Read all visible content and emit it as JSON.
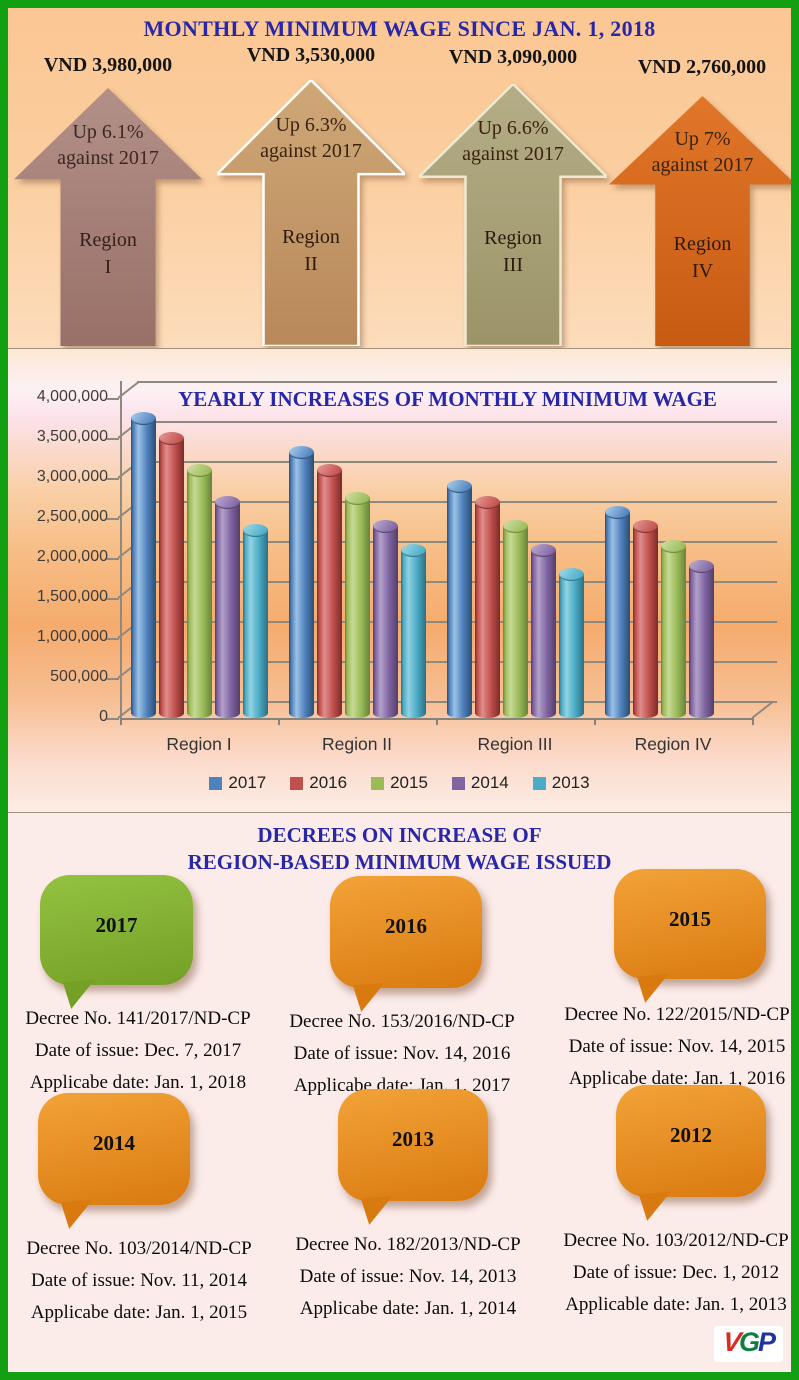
{
  "page": {
    "colors": {
      "frame_green": "#12A012",
      "heading_blue": "#2727A8",
      "top_bg": "#FBCA97",
      "bottom_bg": "#FBEBE9"
    }
  },
  "header": {
    "title": "MONTHLY MINIMUM WAGE SINCE JAN. 1, 2018"
  },
  "regions_2018": [
    {
      "region_name": "Region I",
      "amount": "VND 3,980,000",
      "increase": "Up 6.1%\nagainst 2017",
      "region": "Region\nI",
      "fill_top": "#B29088",
      "fill_bottom": "#997068",
      "outline": "none"
    },
    {
      "region_name": "Region II",
      "amount": "VND 3,530,000",
      "increase": "Up 6.3%\nagainst 2017",
      "region": "Region\nII",
      "fill_top": "#CFA878",
      "fill_bottom": "#B8885A",
      "outline": "#FFFFFF"
    },
    {
      "region_name": "Region III",
      "amount": "VND 3,090,000",
      "increase": "Up 6.6%\nagainst 2017",
      "region": "Region\nIII",
      "fill_top": "#B5AD86",
      "fill_bottom": "#9C9468",
      "outline": "#EFE9D2"
    },
    {
      "region_name": "Region IV",
      "amount": "VND 2,760,000",
      "increase": "Up 7%\nagainst 2017",
      "region": "Region\nIV",
      "fill_top": "#E0762A",
      "fill_bottom": "#C75B12",
      "outline": "none"
    }
  ],
  "chart_data": {
    "type": "bar",
    "bar_style": "3d-cylinder",
    "title": "YEARLY INCREASES OF MONTHLY MINIMUM WAGE",
    "categories": [
      "Region I",
      "Region II",
      "Region III",
      "Region IV"
    ],
    "series": [
      {
        "name": "2017",
        "color": "#4F81BD",
        "light": "#9CC3E5",
        "dark": "#2B4E75",
        "values": [
          3750000,
          3320000,
          2900000,
          2580000
        ]
      },
      {
        "name": "2016",
        "color": "#C0504D",
        "light": "#E08E8B",
        "dark": "#7C2B29",
        "values": [
          3500000,
          3100000,
          2700000,
          2400000
        ]
      },
      {
        "name": "2015",
        "color": "#9BBB59",
        "light": "#C6DA96",
        "dark": "#67833A",
        "values": [
          3100000,
          2750000,
          2400000,
          2150000
        ]
      },
      {
        "name": "2014",
        "color": "#8064A2",
        "light": "#B3A1C9",
        "dark": "#513F68",
        "values": [
          2700000,
          2400000,
          2100000,
          1900000
        ]
      },
      {
        "name": "2013",
        "color": "#4BACC6",
        "light": "#92D2E2",
        "dark": "#2B6F83",
        "values": [
          2350000,
          2100000,
          1800000,
          null
        ]
      }
    ],
    "ylim": [
      0,
      4000000
    ],
    "ytick_step": 500000,
    "ytick_labels": [
      "0",
      "500,000",
      "1,000,000",
      "1,500,000",
      "2,000,000",
      "2,500,000",
      "3,000,000",
      "3,500,000",
      "4,000,000"
    ],
    "xlabel": "",
    "ylabel": "",
    "grid": true,
    "legend_position": "bottom"
  },
  "decrees": {
    "title_line1": "DECREES ON INCREASE OF",
    "title_line2": "REGION-BASED MINIMUM WAGE ISSUED",
    "items": [
      {
        "year": "2017",
        "decree": "Decree No. 141/2017/ND-CP",
        "issued": "Date of issue: Dec. 7, 2017",
        "applicable": "Applicabe date: Jan. 1, 2018",
        "bubble_light": "#93C241",
        "bubble_dark": "#74A026"
      },
      {
        "year": "2016",
        "decree": "Decree No. 153/2016/ND-CP",
        "issued": "Date of issue: Nov. 14, 2016",
        "applicable": "Applicabe date: Jan. 1, 2017",
        "bubble_light": "#F2A338",
        "bubble_dark": "#D97A10"
      },
      {
        "year": "2015",
        "decree": "Decree No. 122/2015/ND-CP",
        "issued": "Date of issue: Nov. 14, 2015",
        "applicable": "Applicabe date: Jan. 1, 2016",
        "bubble_light": "#F2A338",
        "bubble_dark": "#D97A10"
      },
      {
        "year": "2014",
        "decree": "Decree No. 103/2014/ND-CP",
        "issued": "Date of issue: Nov. 11, 2014",
        "applicable": "Applicabe date: Jan. 1, 2015",
        "bubble_light": "#F2A338",
        "bubble_dark": "#D97A10"
      },
      {
        "year": "2013",
        "decree": "Decree No. 182/2013/ND-CP",
        "issued": "Date of issue: Nov. 14, 2013",
        "applicable": "Applicabe date: Jan. 1, 2014",
        "bubble_light": "#F2A338",
        "bubble_dark": "#D97A10"
      },
      {
        "year": "2012",
        "decree": "Decree No. 103/2012/ND-CP",
        "issued": "Date of issue: Dec. 1, 2012",
        "applicable": "Applicable date: Jan. 1, 2013",
        "bubble_light": "#F2A338",
        "bubble_dark": "#D97A10"
      }
    ]
  },
  "logo": {
    "v": "V",
    "g": "G",
    "p": "P",
    "v_color": "#D92B21",
    "g_color": "#0D7F3F",
    "p_color": "#2233A0"
  }
}
